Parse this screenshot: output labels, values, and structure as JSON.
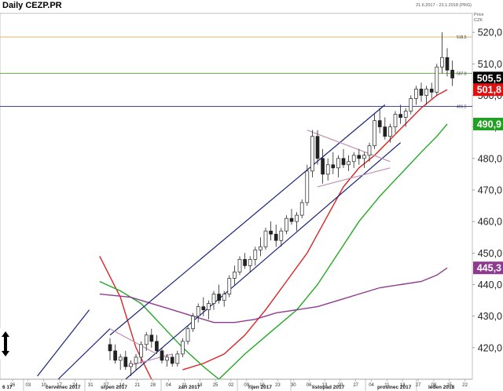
{
  "header": {
    "title": "Daily CEZP.PR",
    "date_range": "21.6.2017 - 23.1.2018 (PRG)",
    "price_label": "Price",
    "currency": "CZK"
  },
  "chart_data": {
    "type": "candlestick",
    "title": "Daily CEZP.PR",
    "ylim": [
      410,
      526
    ],
    "y_ticks": [
      420,
      430,
      440,
      450,
      460,
      470,
      480,
      490,
      500,
      510,
      520
    ],
    "y_tick_labels": [
      "420,0",
      "430,0",
      "440,0",
      "450,0",
      "460,0",
      "470,0",
      "480,0",
      "490,0",
      "500,0",
      "510,0",
      "520,0"
    ],
    "months": [
      "6 17",
      "červenec 2017",
      "srpen 2017",
      "září 2017",
      "říjen 2017",
      "listopad 2017",
      "prosinec 2017",
      "leden 2018"
    ],
    "day_labels": [
      "26",
      "03",
      "10",
      "17",
      "24",
      "31",
      "07",
      "14",
      "21",
      "28",
      "04",
      "11",
      "18",
      "25",
      "02",
      "09",
      "16",
      "23",
      "30",
      "06",
      "13",
      "20",
      "27",
      "04",
      "11",
      "18",
      "27",
      "08",
      "15",
      "22"
    ],
    "levels": [
      {
        "value": 518.5,
        "label": "518,5",
        "color": "#e8b86a"
      },
      {
        "value": 507.0,
        "label": "507,0",
        "color": "#6aa84f"
      },
      {
        "value": 496.5,
        "label": "496,5",
        "color": "#4444aa"
      }
    ],
    "value_badges": [
      {
        "value": 505.5,
        "label": "505,5",
        "color": "#000000"
      },
      {
        "value": 501.8,
        "label": "501,8",
        "color": "#dd1111"
      },
      {
        "value": 490.9,
        "label": "490,9",
        "color": "#22a022"
      },
      {
        "value": 445.3,
        "label": "445,3",
        "color": "#8e3a8e"
      }
    ],
    "candles": [
      {
        "o": 421,
        "h": 423,
        "l": 416,
        "c": 419
      },
      {
        "o": 419,
        "h": 421,
        "l": 415,
        "c": 416
      },
      {
        "o": 416,
        "h": 418,
        "l": 413,
        "c": 417
      },
      {
        "o": 417,
        "h": 419,
        "l": 413,
        "c": 414
      },
      {
        "o": 414,
        "h": 416,
        "l": 411,
        "c": 415
      },
      {
        "o": 415,
        "h": 418,
        "l": 413,
        "c": 417
      },
      {
        "o": 417,
        "h": 422,
        "l": 415,
        "c": 421
      },
      {
        "o": 421,
        "h": 425,
        "l": 419,
        "c": 424
      },
      {
        "o": 424,
        "h": 426,
        "l": 420,
        "c": 422
      },
      {
        "o": 422,
        "h": 424,
        "l": 418,
        "c": 419
      },
      {
        "o": 419,
        "h": 420,
        "l": 415,
        "c": 416
      },
      {
        "o": 416,
        "h": 418,
        "l": 414,
        "c": 417
      },
      {
        "o": 417,
        "h": 418,
        "l": 414,
        "c": 415
      },
      {
        "o": 415,
        "h": 419,
        "l": 414,
        "c": 418
      },
      {
        "o": 418,
        "h": 423,
        "l": 417,
        "c": 422
      },
      {
        "o": 422,
        "h": 427,
        "l": 421,
        "c": 426
      },
      {
        "o": 426,
        "h": 431,
        "l": 425,
        "c": 430
      },
      {
        "o": 430,
        "h": 434,
        "l": 428,
        "c": 433
      },
      {
        "o": 433,
        "h": 436,
        "l": 430,
        "c": 432
      },
      {
        "o": 432,
        "h": 435,
        "l": 429,
        "c": 434
      },
      {
        "o": 434,
        "h": 438,
        "l": 432,
        "c": 437
      },
      {
        "o": 437,
        "h": 440,
        "l": 434,
        "c": 435
      },
      {
        "o": 435,
        "h": 438,
        "l": 433,
        "c": 437
      },
      {
        "o": 437,
        "h": 443,
        "l": 436,
        "c": 442
      },
      {
        "o": 442,
        "h": 446,
        "l": 440,
        "c": 444
      },
      {
        "o": 444,
        "h": 449,
        "l": 443,
        "c": 448
      },
      {
        "o": 448,
        "h": 450,
        "l": 445,
        "c": 446
      },
      {
        "o": 446,
        "h": 449,
        "l": 444,
        "c": 448
      },
      {
        "o": 448,
        "h": 452,
        "l": 446,
        "c": 451
      },
      {
        "o": 451,
        "h": 455,
        "l": 449,
        "c": 452
      },
      {
        "o": 452,
        "h": 458,
        "l": 451,
        "c": 457
      },
      {
        "o": 457,
        "h": 460,
        "l": 454,
        "c": 456
      },
      {
        "o": 456,
        "h": 459,
        "l": 452,
        "c": 454
      },
      {
        "o": 454,
        "h": 458,
        "l": 452,
        "c": 457
      },
      {
        "o": 457,
        "h": 462,
        "l": 456,
        "c": 461
      },
      {
        "o": 461,
        "h": 464,
        "l": 459,
        "c": 460
      },
      {
        "o": 460,
        "h": 463,
        "l": 457,
        "c": 462
      },
      {
        "o": 462,
        "h": 467,
        "l": 461,
        "c": 466
      },
      {
        "o": 466,
        "h": 478,
        "l": 465,
        "c": 476
      },
      {
        "o": 476,
        "h": 489,
        "l": 474,
        "c": 487
      },
      {
        "o": 487,
        "h": 489,
        "l": 478,
        "c": 480
      },
      {
        "o": 480,
        "h": 483,
        "l": 472,
        "c": 475
      },
      {
        "o": 475,
        "h": 480,
        "l": 473,
        "c": 478
      },
      {
        "o": 478,
        "h": 482,
        "l": 475,
        "c": 477
      },
      {
        "o": 477,
        "h": 481,
        "l": 474,
        "c": 480
      },
      {
        "o": 480,
        "h": 483,
        "l": 477,
        "c": 478
      },
      {
        "o": 478,
        "h": 481,
        "l": 476,
        "c": 479
      },
      {
        "o": 479,
        "h": 482,
        "l": 477,
        "c": 481
      },
      {
        "o": 481,
        "h": 483,
        "l": 478,
        "c": 480
      },
      {
        "o": 480,
        "h": 482,
        "l": 477,
        "c": 481
      },
      {
        "o": 481,
        "h": 485,
        "l": 479,
        "c": 484
      },
      {
        "o": 484,
        "h": 494,
        "l": 483,
        "c": 492
      },
      {
        "o": 492,
        "h": 496,
        "l": 488,
        "c": 490
      },
      {
        "o": 490,
        "h": 493,
        "l": 486,
        "c": 487
      },
      {
        "o": 487,
        "h": 491,
        "l": 485,
        "c": 490
      },
      {
        "o": 490,
        "h": 495,
        "l": 488,
        "c": 494
      },
      {
        "o": 494,
        "h": 497,
        "l": 491,
        "c": 493
      },
      {
        "o": 493,
        "h": 496,
        "l": 490,
        "c": 495
      },
      {
        "o": 495,
        "h": 500,
        "l": 494,
        "c": 499
      },
      {
        "o": 499,
        "h": 503,
        "l": 497,
        "c": 502
      },
      {
        "o": 502,
        "h": 504,
        "l": 498,
        "c": 500
      },
      {
        "o": 500,
        "h": 503,
        "l": 497,
        "c": 502
      },
      {
        "o": 502,
        "h": 504,
        "l": 499,
        "c": 501
      },
      {
        "o": 501,
        "h": 510,
        "l": 500,
        "c": 509
      },
      {
        "o": 509,
        "h": 520,
        "l": 507,
        "c": 512
      },
      {
        "o": 512,
        "h": 515,
        "l": 506,
        "c": 508
      },
      {
        "o": 508,
        "h": 511,
        "l": 503,
        "c": 505.5
      }
    ],
    "moving_averages": [
      {
        "color": "#dd2222",
        "points": [
          [
            -2,
            449
          ],
          [
            2,
            436
          ],
          [
            5,
            420
          ],
          [
            8,
            410
          ]
        ]
      },
      {
        "color": "#dd2222",
        "points": [
          [
            14,
            413
          ],
          [
            18,
            415
          ],
          [
            22,
            418
          ],
          [
            26,
            424
          ],
          [
            30,
            432
          ],
          [
            34,
            441
          ],
          [
            38,
            450
          ],
          [
            42,
            462
          ],
          [
            45,
            471
          ],
          [
            48,
            477
          ],
          [
            51,
            481
          ],
          [
            54,
            486
          ],
          [
            57,
            491
          ],
          [
            60,
            496
          ],
          [
            63,
            500
          ],
          [
            65,
            501.8
          ]
        ]
      },
      {
        "color": "#22aa22",
        "points": [
          [
            -2,
            441
          ],
          [
            2,
            438
          ],
          [
            6,
            434
          ],
          [
            10,
            427
          ],
          [
            14,
            420
          ],
          [
            18,
            414
          ],
          [
            21,
            410
          ]
        ]
      },
      {
        "color": "#22aa22",
        "points": [
          [
            21,
            410
          ],
          [
            26,
            418
          ],
          [
            31,
            425
          ],
          [
            36,
            432
          ],
          [
            40,
            440
          ],
          [
            44,
            450
          ],
          [
            48,
            460
          ],
          [
            52,
            468
          ],
          [
            56,
            475
          ],
          [
            60,
            482
          ],
          [
            63,
            487
          ],
          [
            65,
            490.9
          ]
        ]
      },
      {
        "color": "#8e3a8e",
        "points": [
          [
            -2,
            437
          ],
          [
            4,
            436
          ],
          [
            8,
            434
          ],
          [
            12,
            432
          ],
          [
            16,
            430
          ],
          [
            20,
            428
          ],
          [
            24,
            428
          ],
          [
            28,
            429
          ],
          [
            32,
            431
          ],
          [
            36,
            432
          ],
          [
            40,
            433
          ],
          [
            44,
            435
          ],
          [
            48,
            437
          ],
          [
            52,
            439
          ],
          [
            56,
            440
          ],
          [
            60,
            441
          ],
          [
            63,
            443
          ],
          [
            65,
            445.3
          ]
        ]
      }
    ],
    "trendlines": [
      {
        "color": "#1a237e",
        "points": [
          [
            -14,
            411
          ],
          [
            -4,
            432
          ]
        ]
      },
      {
        "color": "#1a237e",
        "points": [
          [
            -10,
            410
          ],
          [
            0,
            426
          ]
        ]
      },
      {
        "color": "#1a237e",
        "points": [
          [
            0,
            424
          ],
          [
            53,
            497
          ]
        ]
      },
      {
        "color": "#1a237e",
        "points": [
          [
            3,
            410
          ],
          [
            56,
            485
          ]
        ]
      },
      {
        "color": "#c090b0",
        "points": [
          [
            0,
            426
          ],
          [
            9,
            418
          ]
        ]
      },
      {
        "color": "#c090b0",
        "points": [
          [
            3,
            414
          ],
          [
            12,
            418
          ]
        ]
      },
      {
        "color": "#c090b0",
        "points": [
          [
            38,
            489
          ],
          [
            54,
            479
          ]
        ]
      },
      {
        "color": "#c090b0",
        "points": [
          [
            40,
            471
          ],
          [
            54,
            477
          ]
        ]
      }
    ]
  }
}
